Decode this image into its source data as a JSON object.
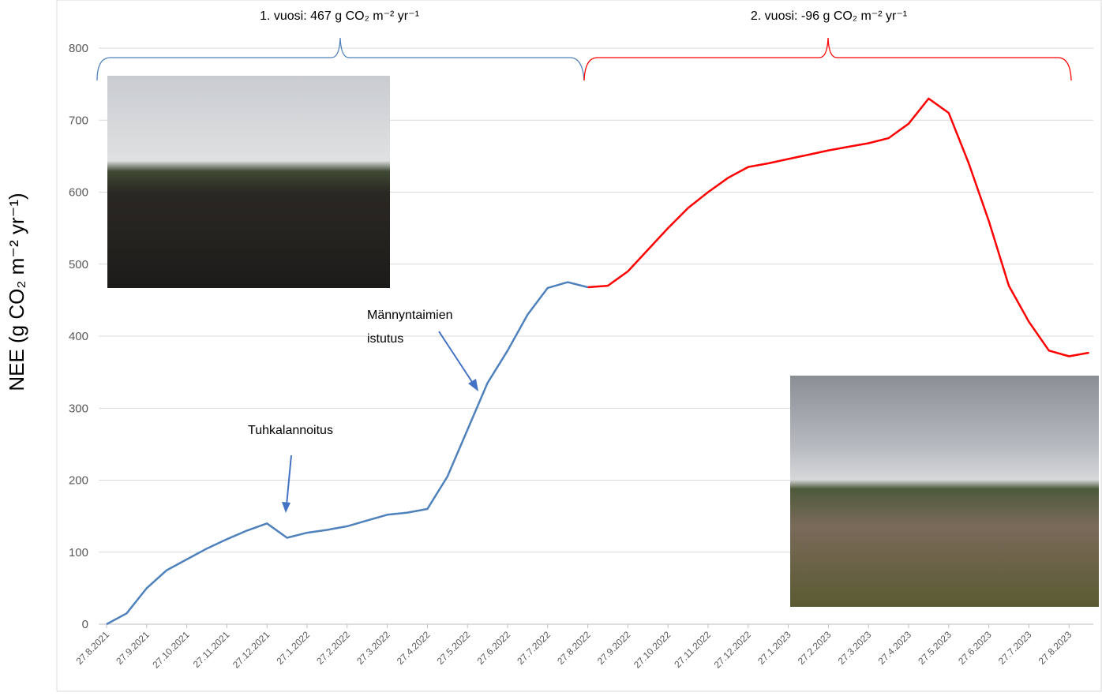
{
  "chart_data": {
    "type": "line",
    "y_label": "NEE (g CO₂ m⁻² yr⁻¹)",
    "annotations": [
      "1. vuosi: 467 g CO₂ m⁻² yr⁻¹",
      "2. vuosi: -96 g CO₂ m⁻² yr⁻¹",
      "Tuhkalannoitus",
      [
        "Männyntaimien",
        "istutus"
      ]
    ],
    "categories": [
      "27.8.2021",
      null,
      "27.9.2021",
      null,
      "27.10.2021",
      null,
      "27.11.2021",
      null,
      "27.12.2021",
      null,
      "27.1.2022",
      null,
      "27.2.2022",
      null,
      "27.3.2022",
      null,
      "27.4.2022",
      null,
      "27.5.2022",
      null,
      "27.6.2022",
      null,
      "27.7.2022",
      null,
      "27.8.2022",
      null,
      "27.9.2022",
      null,
      "27.10.2022",
      null,
      "27.11.2022",
      null,
      "27.12.2022",
      null,
      "27.1.2023",
      null,
      "27.2.2023",
      null,
      "27.3.2023",
      null,
      "27.4.2023",
      null,
      "27.5.2023",
      null,
      "27.6.2023",
      null,
      "27.7.2023",
      null,
      "27.8.2023",
      null
    ],
    "series": [
      {
        "color": "#4f81bd",
        "values": [
          0,
          15,
          50,
          75,
          90,
          105,
          118,
          130,
          140,
          120,
          127,
          131,
          136,
          144,
          152,
          155,
          160,
          205,
          270,
          335,
          380,
          430,
          467,
          475,
          468,
          null,
          null,
          null,
          null,
          null,
          null,
          null,
          null,
          null,
          null,
          null,
          null,
          null,
          null,
          null,
          null,
          null,
          null,
          null,
          null,
          null,
          null,
          null,
          null,
          null
        ]
      },
      {
        "color": "#ff0000",
        "values": [
          null,
          null,
          null,
          null,
          null,
          null,
          null,
          null,
          null,
          null,
          null,
          null,
          null,
          null,
          null,
          null,
          null,
          null,
          null,
          null,
          null,
          null,
          null,
          null,
          468,
          470,
          490,
          520,
          550,
          578,
          600,
          620,
          635,
          640,
          646,
          652,
          658,
          663,
          668,
          675,
          695,
          730,
          710,
          640,
          560,
          470,
          420,
          380,
          372,
          377
        ]
      }
    ],
    "ylim": [
      0,
      800
    ],
    "yticks": [
      0,
      100,
      200,
      300,
      400,
      500,
      600,
      700,
      800
    ],
    "grid": true
  }
}
